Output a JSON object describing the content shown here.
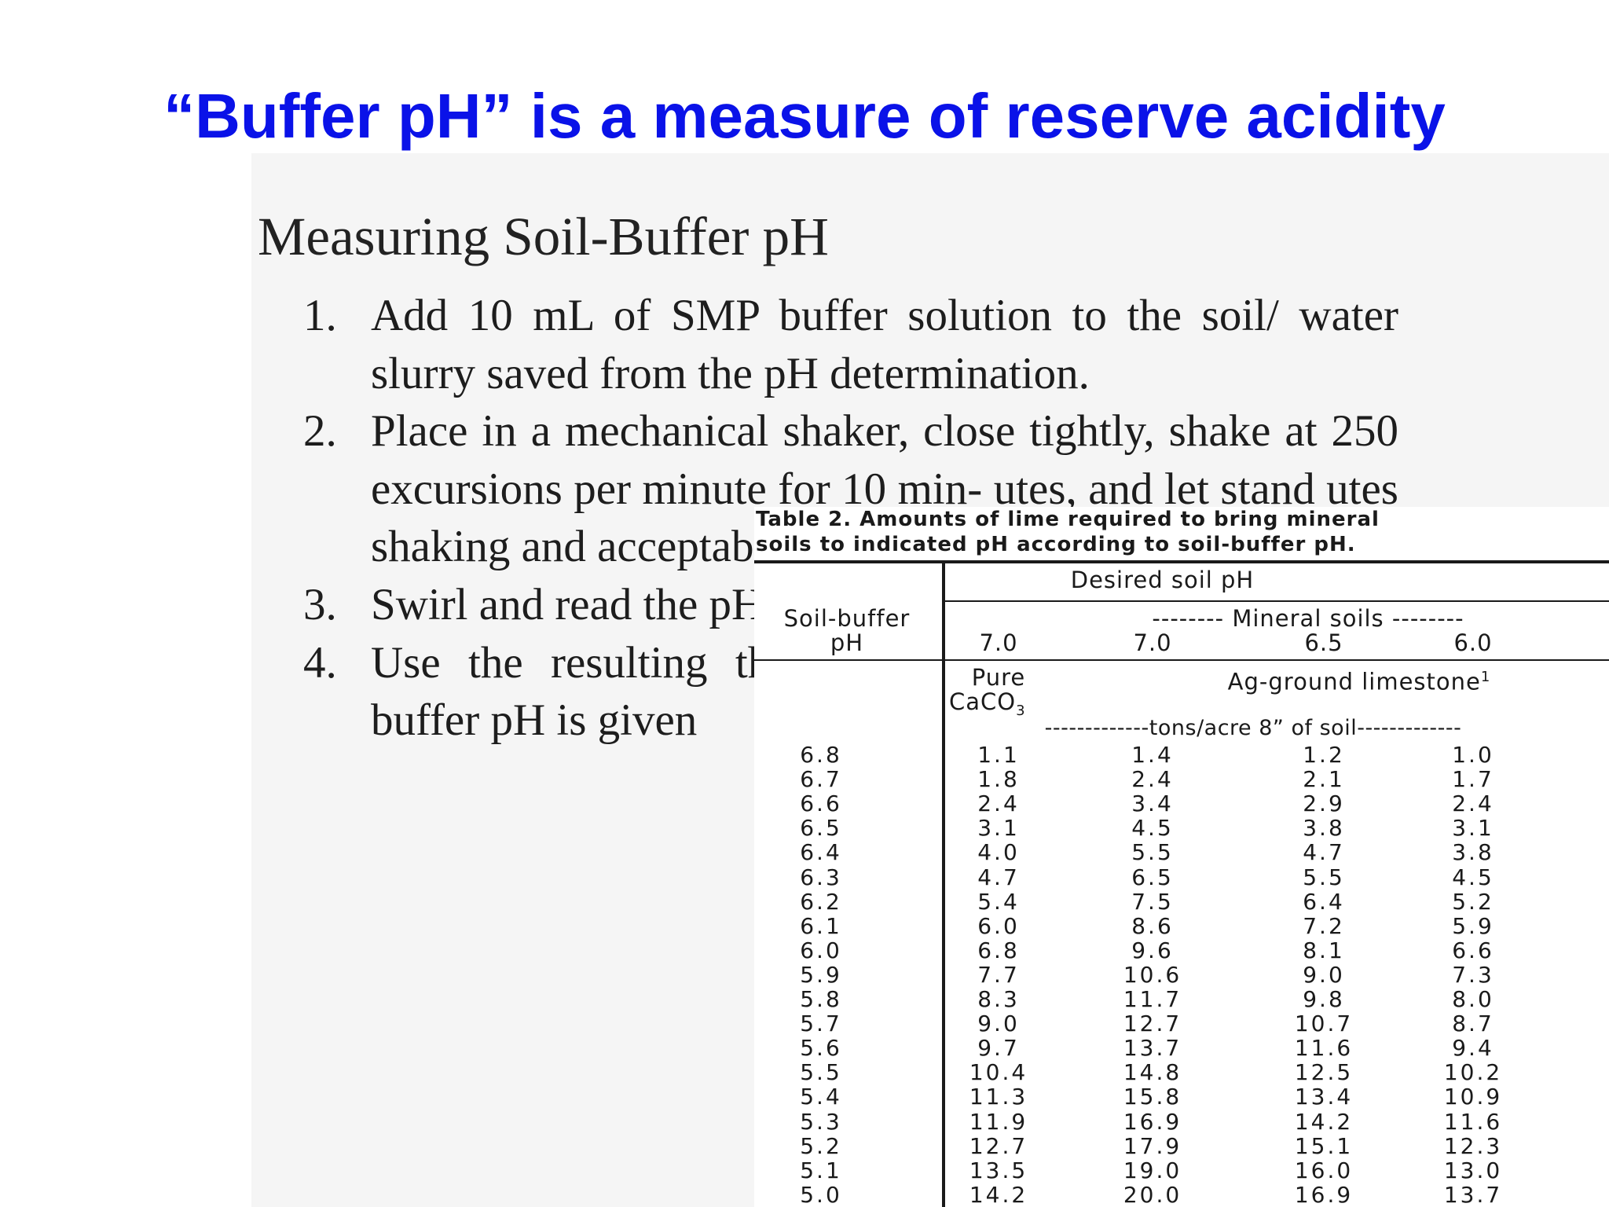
{
  "slide": {
    "title": "“Buffer pH” is a measure of reserve acidity"
  },
  "document": {
    "heading": "Measuring Soil-Buffer pH",
    "steps": [
      {
        "number": "1.",
        "text": "Add 10 mL of SMP buffer solution to the soil/ water slurry saved from the pH determination."
      },
      {
        "number": "2.",
        "text": "Place in a mechanical shaker, close tightly, shake at 250 excursions per minute for 10 min- utes, and let stand utes shaking and acceptable. See Ta"
      },
      {
        "number": "3.",
        "text": "Swirl and read the pH unit, particula option described"
      },
      {
        "number": "4.",
        "text": "Use the resulting the lime requiren requirement for buffer pH is given"
      }
    ]
  },
  "table": {
    "caption_line1": "Table 2. Amounts of lime required to bring mineral",
    "caption_line2": "soils to indicated pH according to soil-buffer pH.",
    "desired_header": "Desired soil pH",
    "row_header_line1": "Soil-buffer",
    "row_header_line2": "pH",
    "mineral_header": "-------- Mineral soils --------",
    "target_ph": [
      "7.0",
      "7.0",
      "6.5",
      "6.0"
    ],
    "pure_line1": "Pure",
    "pure_formula": "CaCO",
    "pure_subscript": "3",
    "ag_label": "Ag-ground limestone",
    "ag_footnote": "1",
    "units": "-------------tons/acre 8” of soil-------------",
    "rows": [
      {
        "buffer_ph": "6.8",
        "values": [
          "1.1",
          "1.4",
          "1.2",
          "1.0"
        ]
      },
      {
        "buffer_ph": "6.7",
        "values": [
          "1.8",
          "2.4",
          "2.1",
          "1.7"
        ]
      },
      {
        "buffer_ph": "6.6",
        "values": [
          "2.4",
          "3.4",
          "2.9",
          "2.4"
        ]
      },
      {
        "buffer_ph": "6.5",
        "values": [
          "3.1",
          "4.5",
          "3.8",
          "3.1"
        ]
      },
      {
        "buffer_ph": "6.4",
        "values": [
          "4.0",
          "5.5",
          "4.7",
          "3.8"
        ]
      },
      {
        "buffer_ph": "6.3",
        "values": [
          "4.7",
          "6.5",
          "5.5",
          "4.5"
        ]
      },
      {
        "buffer_ph": "6.2",
        "values": [
          "5.4",
          "7.5",
          "6.4",
          "5.2"
        ]
      },
      {
        "buffer_ph": "6.1",
        "values": [
          "6.0",
          "8.6",
          "7.2",
          "5.9"
        ]
      },
      {
        "buffer_ph": "6.0",
        "values": [
          "6.8",
          "9.6",
          "8.1",
          "6.6"
        ]
      },
      {
        "buffer_ph": "5.9",
        "values": [
          "7.7",
          "10.6",
          "9.0",
          "7.3"
        ]
      },
      {
        "buffer_ph": "5.8",
        "values": [
          "8.3",
          "11.7",
          "9.8",
          "8.0"
        ]
      },
      {
        "buffer_ph": "5.7",
        "values": [
          "9.0",
          "12.7",
          "10.7",
          "8.7"
        ]
      },
      {
        "buffer_ph": "5.6",
        "values": [
          "9.7",
          "13.7",
          "11.6",
          "9.4"
        ]
      },
      {
        "buffer_ph": "5.5",
        "values": [
          "10.4",
          "14.8",
          "12.5",
          "10.2"
        ]
      },
      {
        "buffer_ph": "5.4",
        "values": [
          "11.3",
          "15.8",
          "13.4",
          "10.9"
        ]
      },
      {
        "buffer_ph": "5.3",
        "values": [
          "11.9",
          "16.9",
          "14.2",
          "11.6"
        ]
      },
      {
        "buffer_ph": "5.2",
        "values": [
          "12.7",
          "17.9",
          "15.1",
          "12.3"
        ]
      },
      {
        "buffer_ph": "5.1",
        "values": [
          "13.5",
          "19.0",
          "16.0",
          "13.0"
        ]
      },
      {
        "buffer_ph": "5.0",
        "values": [
          "14.2",
          "20.0",
          "16.9",
          "13.7"
        ]
      }
    ]
  }
}
